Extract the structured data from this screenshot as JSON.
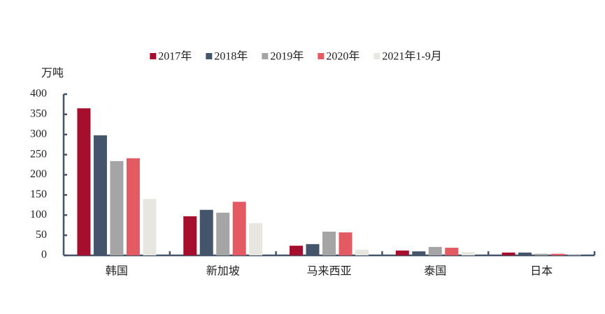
{
  "chart_data": {
    "type": "bar",
    "y_axis_label": "万吨",
    "categories": [
      "韩国",
      "新加坡",
      "马来西亚",
      "泰国",
      "日本"
    ],
    "series": [
      {
        "name": "2017年",
        "color": "#a50f2d",
        "values": [
          365,
          97,
          24,
          12,
          7
        ]
      },
      {
        "name": "2018年",
        "color": "#44546a",
        "values": [
          298,
          113,
          28,
          10,
          7
        ]
      },
      {
        "name": "2019年",
        "color": "#a5a5a5",
        "values": [
          234,
          106,
          59,
          21,
          4
        ]
      },
      {
        "name": "2020年",
        "color": "#e45a62",
        "values": [
          241,
          133,
          57,
          19,
          4
        ]
      },
      {
        "name": "2021年1-9月",
        "color": "#e7e6e0",
        "values": [
          140,
          80,
          14,
          8,
          1
        ]
      }
    ],
    "ylim": [
      0,
      400
    ],
    "yticks": [
      0,
      50,
      100,
      150,
      200,
      250,
      300,
      350,
      400
    ],
    "legend": "top",
    "grid": false
  }
}
